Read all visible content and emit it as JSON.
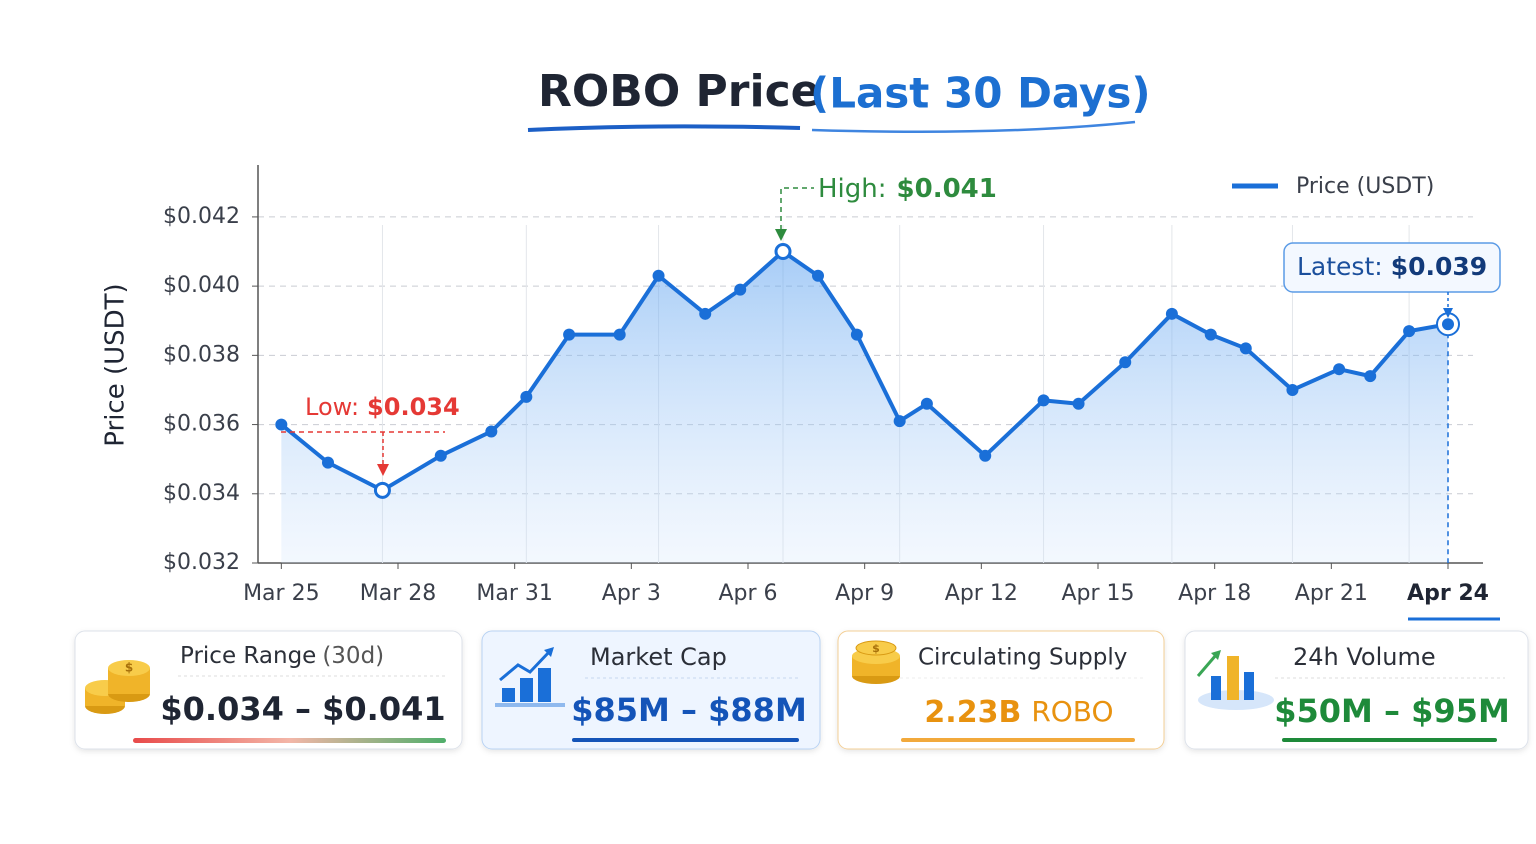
{
  "chart_data": {
    "type": "line",
    "title": "ROBO Price",
    "subtitle": "(Last 30 Days)",
    "y_label": "Price (USDT)",
    "x": [
      0,
      1.2,
      2.6,
      4.1,
      5.4,
      6.3,
      7.4,
      8.7,
      9.7,
      10.9,
      11.8,
      12.9,
      13.8,
      14.8,
      15.9,
      16.6,
      18.1,
      19.6,
      20.5,
      21.7,
      22.9,
      23.9,
      24.8,
      26.0,
      27.2,
      28.0,
      29.0,
      30
    ],
    "series": [
      {
        "name": "Price (USDT)",
        "color": "#1a6fd8",
        "values": [
          0.036,
          0.0349,
          0.0341,
          0.0351,
          0.0358,
          0.0368,
          0.0386,
          0.0386,
          0.0403,
          0.0392,
          0.0399,
          0.041,
          0.0403,
          0.0386,
          0.0361,
          0.0366,
          0.0351,
          0.0367,
          0.0366,
          0.0378,
          0.0392,
          0.0386,
          0.0382,
          0.037,
          0.0376,
          0.0374,
          0.0387,
          0.0389
        ]
      }
    ],
    "xlim": [
      -0.6,
      30.9
    ],
    "xticks": [
      {
        "value": 0,
        "label": "Mar 25"
      },
      {
        "value": 3,
        "label": "Mar 28"
      },
      {
        "value": 6,
        "label": "Mar 31"
      },
      {
        "value": 9,
        "label": "Apr 3"
      },
      {
        "value": 12,
        "label": "Apr 6"
      },
      {
        "value": 15,
        "label": "Apr 9"
      },
      {
        "value": 18,
        "label": "Apr 12"
      },
      {
        "value": 21,
        "label": "Apr 15"
      },
      {
        "value": 24,
        "label": "Apr 18"
      },
      {
        "value": 27,
        "label": "Apr 21"
      },
      {
        "value": 30,
        "label": "Apr 24"
      }
    ],
    "ylim": [
      0.032,
      0.0435
    ],
    "yticks": [
      {
        "value": 0.032,
        "label": "$0.032"
      },
      {
        "value": 0.034,
        "label": "$0.034"
      },
      {
        "value": 0.036,
        "label": "$0.036"
      },
      {
        "value": 0.038,
        "label": "$0.038"
      },
      {
        "value": 0.04,
        "label": "$0.040"
      },
      {
        "value": 0.042,
        "label": "$0.042"
      }
    ],
    "grid": true,
    "legend": "top-right",
    "annotations": {
      "low": {
        "label": "Low:",
        "value": "$0.034"
      },
      "high": {
        "label": "High:",
        "value": "$0.041"
      },
      "latest": {
        "label": "Latest:",
        "value": "$0.039"
      }
    }
  },
  "cards": [
    {
      "title": "Price Range",
      "note": "(30d)",
      "value": "$0.034 – $0.041"
    },
    {
      "title": "Market Cap",
      "value": "$85M – $88M"
    },
    {
      "title": "Circulating Supply",
      "value": "2.23B",
      "unit": "ROBO"
    },
    {
      "title": "24h Volume",
      "value": "$50M – $95M"
    }
  ]
}
